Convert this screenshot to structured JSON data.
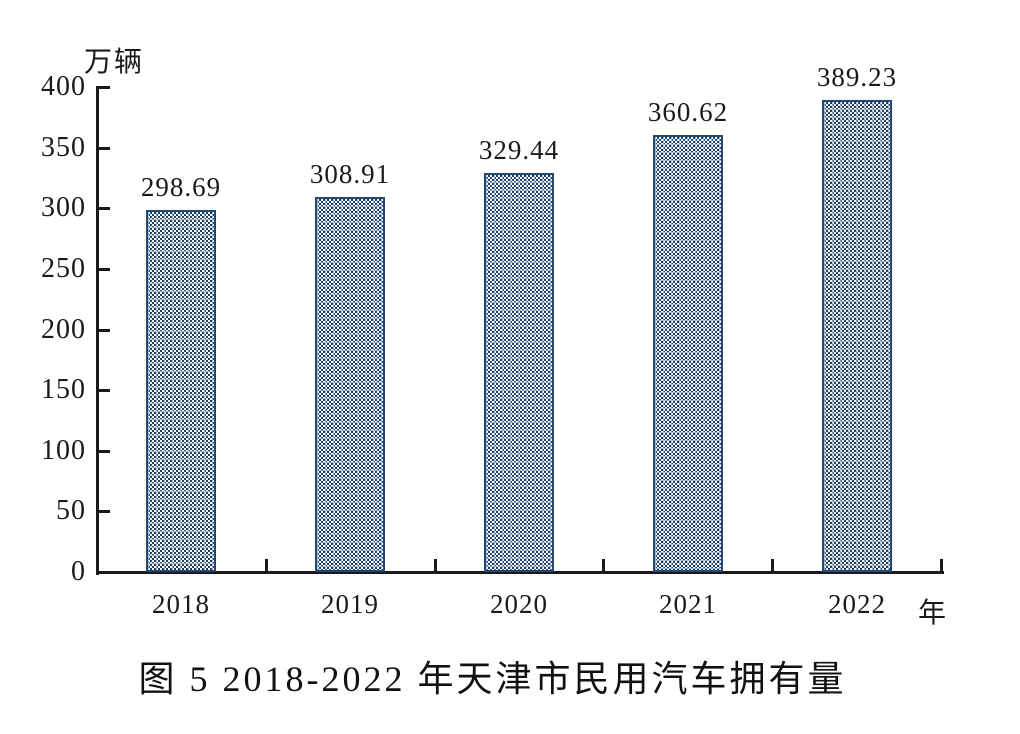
{
  "chart_data": {
    "type": "bar",
    "title": "图 5  2018-2022 年天津市民用汽车拥有量",
    "ylabel": "万辆",
    "xlabel": "年",
    "categories": [
      "2018",
      "2019",
      "2020",
      "2021",
      "2022"
    ],
    "values": [
      298.69,
      308.91,
      329.44,
      360.62,
      389.23
    ],
    "data_labels": [
      "298.69",
      "308.91",
      "329.44",
      "360.62",
      "389.23"
    ],
    "ylim": [
      0,
      400
    ],
    "yticks": [
      0,
      50,
      100,
      150,
      200,
      250,
      300,
      350,
      400
    ],
    "grid": false,
    "legend": "none",
    "colors": {
      "bar_border": "#24486e",
      "bar_pattern_dark": "#1e3f66",
      "bar_pattern_light": "#9fb8d8",
      "axis": "#1a1a1a",
      "text": "#1a1a1a",
      "background": "#ffffff"
    }
  }
}
